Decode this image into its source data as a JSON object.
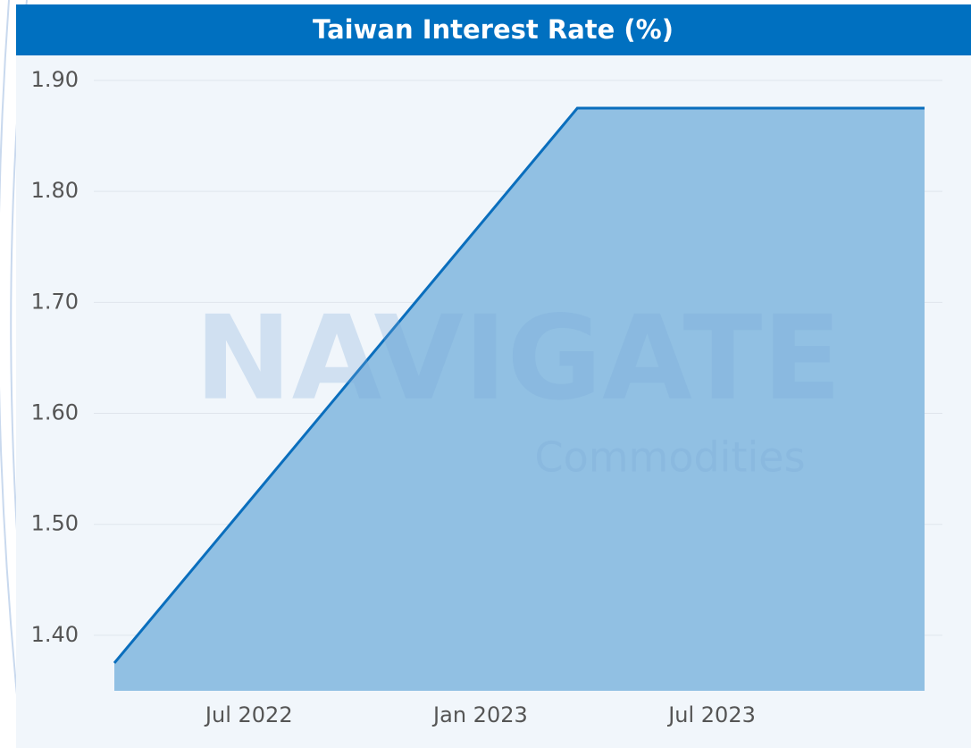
{
  "chart_data": {
    "type": "area",
    "title": "Taiwan Interest Rate (%)",
    "watermark": {
      "main": "NAVIGATE",
      "sub": "Commodities"
    },
    "x": [
      "2022-03",
      "2022-06",
      "2022-09",
      "2022-12",
      "2023-03",
      "2023-06",
      "2023-09",
      "2023-12"
    ],
    "series": [
      {
        "name": "Taiwan Interest Rate",
        "color": "#0a6ebd",
        "fill": "#91c0e3",
        "values": [
          1.375,
          1.5,
          1.625,
          1.75,
          1.875,
          1.875,
          1.875,
          1.875
        ]
      }
    ],
    "xlim": [
      "2022-03",
      "2023-12"
    ],
    "xticks": [
      {
        "value": "2022-07",
        "label": "Jul 2022"
      },
      {
        "value": "2023-01",
        "label": "Jan 2023"
      },
      {
        "value": "2023-07",
        "label": "Jul 2023"
      }
    ],
    "ylim": [
      1.35,
      1.9
    ],
    "yticks": [
      {
        "value": 1.4,
        "label": "1.40"
      },
      {
        "value": 1.5,
        "label": "1.50"
      },
      {
        "value": 1.6,
        "label": "1.60"
      },
      {
        "value": 1.7,
        "label": "1.70"
      },
      {
        "value": 1.8,
        "label": "1.80"
      },
      {
        "value": 1.9,
        "label": "1.90"
      }
    ],
    "grid": true
  }
}
